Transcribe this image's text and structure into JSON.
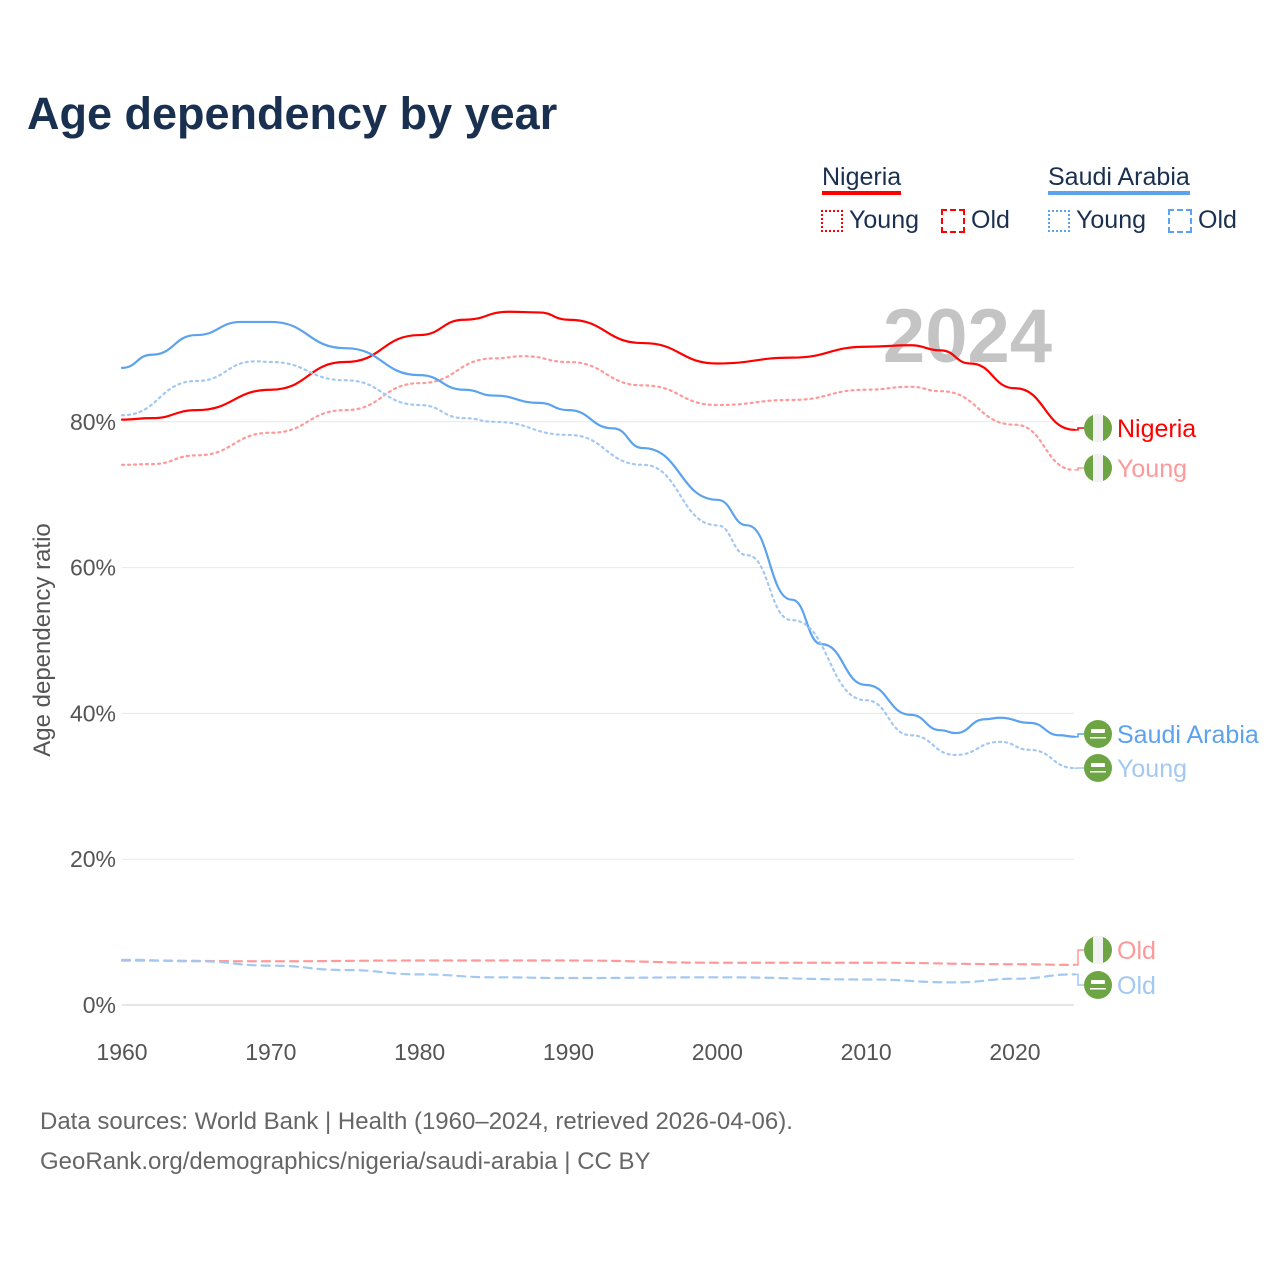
{
  "chart_data": {
    "type": "line",
    "title": "Age dependency by year",
    "ylabel": "Age dependency ratio",
    "xlabel": "",
    "xlim": [
      1960,
      2024
    ],
    "ylim": [
      0,
      100
    ],
    "x_ticks": [
      "1960",
      "1970",
      "1980",
      "1990",
      "2000",
      "2010",
      "2020"
    ],
    "y_ticks": [
      "0%",
      "20%",
      "40%",
      "60%",
      "80%"
    ],
    "year_label": "2024",
    "legend": {
      "groups": [
        {
          "name": "Nigeria",
          "items": [
            "Young",
            "Old"
          ]
        },
        {
          "name": "Saudi Arabia",
          "items": [
            "Young",
            "Old"
          ]
        }
      ],
      "placement": "top-right"
    },
    "series": [
      {
        "id": "ng_total",
        "name": "Nigeria",
        "country": "Nigeria",
        "kind": "total",
        "color": "#ff0000",
        "dash": "solid",
        "x": [
          1960,
          1962,
          1965,
          1970,
          1975,
          1980,
          1983,
          1986,
          1988,
          1990,
          1995,
          2000,
          2005,
          2010,
          2013,
          2015,
          2017,
          2020,
          2024
        ],
        "y": [
          80.3,
          80.5,
          81.6,
          84.4,
          88.2,
          91.9,
          94,
          95.1,
          95,
          94,
          90.8,
          88,
          88.8,
          90.3,
          90.5,
          89.8,
          88,
          84.6,
          78.9
        ]
      },
      {
        "id": "ng_young",
        "name": "Young",
        "country": "Nigeria",
        "kind": "young",
        "color": "#ff9999",
        "dash": "dotted",
        "x": [
          1960,
          1962,
          1965,
          1970,
          1975,
          1980,
          1985,
          1987,
          1990,
          1995,
          2000,
          2005,
          2010,
          2013,
          2015,
          2020,
          2024
        ],
        "y": [
          74.1,
          74.2,
          75.4,
          78.5,
          81.6,
          85.3,
          88.7,
          89,
          88.2,
          85,
          82.3,
          83,
          84.4,
          84.8,
          84.2,
          79.6,
          73.4
        ]
      },
      {
        "id": "sa_total",
        "name": "Saudi Arabia",
        "country": "Saudi Arabia",
        "kind": "total",
        "color": "#5ba3ee",
        "dash": "solid",
        "x": [
          1960,
          1962,
          1965,
          1968,
          1970,
          1975,
          1980,
          1983,
          1985,
          1988,
          1990,
          1993,
          1995,
          2000,
          2002,
          2005,
          2007,
          2010,
          2013,
          2015,
          2016,
          2018,
          2019,
          2021,
          2023,
          2024
        ],
        "y": [
          87.4,
          89.2,
          91.9,
          93.7,
          93.7,
          90.1,
          86.4,
          84.4,
          83.6,
          82.6,
          81.6,
          79.1,
          76.4,
          69.3,
          65.8,
          55.6,
          49.5,
          43.9,
          39.8,
          37.7,
          37.3,
          39.2,
          39.4,
          38.7,
          37,
          36.8
        ]
      },
      {
        "id": "sa_young",
        "name": "Young",
        "country": "Saudi Arabia",
        "kind": "young",
        "color": "#a3c8f2",
        "dash": "dotted",
        "x": [
          1960,
          1965,
          1969,
          1970,
          1975,
          1980,
          1983,
          1985,
          1990,
          1995,
          2000,
          2002,
          2005,
          2010,
          2013,
          2016,
          2019,
          2021,
          2024
        ],
        "y": [
          80.9,
          85.6,
          88.3,
          88.2,
          85.7,
          82.3,
          80.5,
          80,
          78.2,
          74.1,
          65.8,
          61.7,
          52.8,
          41.8,
          37,
          34.3,
          36.1,
          35,
          32.5
        ]
      },
      {
        "id": "ng_old",
        "name": "Old",
        "country": "Nigeria",
        "kind": "old",
        "color": "#ff9999",
        "dash": "dashed",
        "x": [
          1960,
          1970,
          1980,
          1990,
          2000,
          2010,
          2020,
          2024
        ],
        "y": [
          6.1,
          6,
          6.1,
          6.1,
          5.8,
          5.8,
          5.6,
          5.5
        ]
      },
      {
        "id": "sa_old",
        "name": "Old",
        "country": "Saudi Arabia",
        "kind": "old",
        "color": "#a3c8f2",
        "dash": "dashed",
        "x": [
          1960,
          1965,
          1970,
          1975,
          1980,
          1985,
          1990,
          2000,
          2010,
          2016,
          2020,
          2024
        ],
        "y": [
          6.2,
          6,
          5.4,
          4.8,
          4.2,
          3.8,
          3.7,
          3.8,
          3.5,
          3.1,
          3.6,
          4.2
        ]
      }
    ]
  },
  "sources": {
    "line1": "Data sources: World Bank | Health (1960–2024, retrieved 2026-04-06).",
    "line2": "GeoRank.org/demographics/nigeria/saudi-arabia | CC BY"
  }
}
